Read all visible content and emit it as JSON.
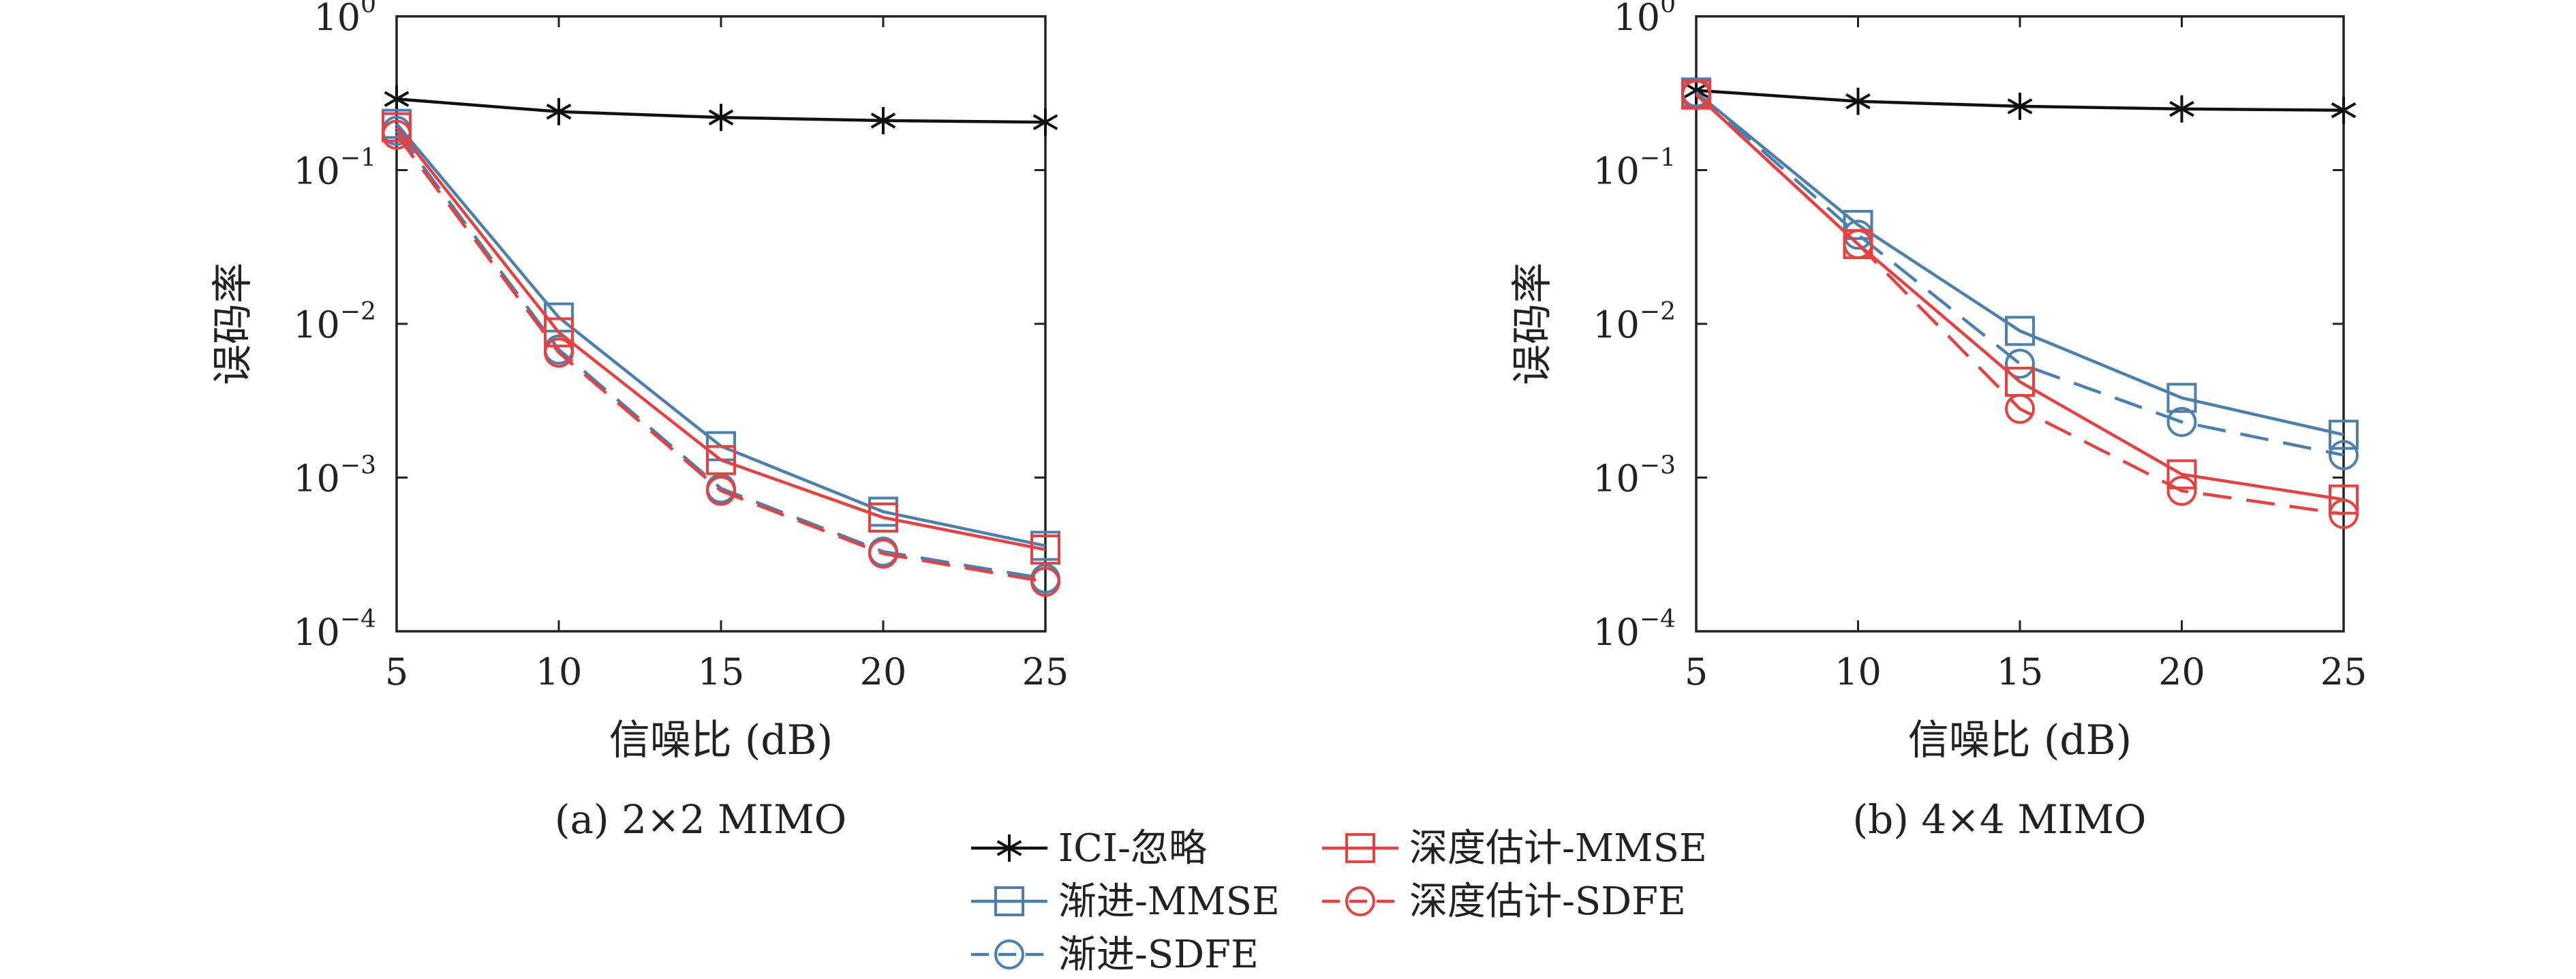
{
  "colors": {
    "ici": "#111111",
    "asym": "#4a7fb0",
    "deep": "#e8403f",
    "axis": "#222222"
  },
  "legend": {
    "items": [
      {
        "label": "ICI-忽略",
        "series": "ici",
        "marker": "asterisk",
        "dash": false
      },
      {
        "label": "渐进-MMSE",
        "series": "asym_mmse",
        "marker": "square",
        "dash": false
      },
      {
        "label": "渐进-SDFE",
        "series": "asym_sdfe",
        "marker": "circle",
        "dash": true
      },
      {
        "label": "深度估计-MMSE",
        "series": "deep_mmse",
        "marker": "square",
        "dash": false
      },
      {
        "label": "深度估计-SDFE",
        "series": "deep_sdfe",
        "marker": "circle",
        "dash": true
      }
    ]
  },
  "chart_data": [
    {
      "type": "line",
      "caption": "(a) 2×2 MIMO",
      "xlabel": "信噪比 (dB)",
      "ylabel": "误码率",
      "yscale": "log",
      "xlim": [
        5,
        25
      ],
      "ylim": [
        0.0001,
        1
      ],
      "x": [
        5,
        10,
        15,
        20,
        25
      ],
      "xticks": [
        "5",
        "10",
        "15",
        "20",
        "25"
      ],
      "yticks": [
        {
          "value": 1,
          "base": "10",
          "exp": "0"
        },
        {
          "value": 0.1,
          "base": "10",
          "exp": "−1"
        },
        {
          "value": 0.01,
          "base": "10",
          "exp": "−2"
        },
        {
          "value": 0.001,
          "base": "10",
          "exp": "−3"
        },
        {
          "value": 0.0001,
          "base": "10",
          "exp": "−4"
        }
      ],
      "series": [
        {
          "name": "ICI-忽略",
          "key": "ici",
          "values": [
            0.29,
            0.24,
            0.22,
            0.21,
            0.205
          ]
        },
        {
          "name": "渐进-MMSE",
          "key": "asym_mmse",
          "values": [
            0.2,
            0.011,
            0.0016,
            0.0006,
            0.00036
          ]
        },
        {
          "name": "渐进-SDFE",
          "key": "asym_sdfe",
          "values": [
            0.18,
            0.0068,
            0.00085,
            0.00033,
            0.00022
          ]
        },
        {
          "name": "深度估计-MMSE",
          "key": "deep_mmse",
          "values": [
            0.19,
            0.0088,
            0.0013,
            0.00055,
            0.00034
          ]
        },
        {
          "name": "深度估计-SDFE",
          "key": "deep_sdfe",
          "values": [
            0.17,
            0.0065,
            0.00082,
            0.00032,
            0.00021
          ]
        }
      ]
    },
    {
      "type": "line",
      "caption": "(b) 4×4 MIMO",
      "xlabel": "信噪比 (dB)",
      "ylabel": "误码率",
      "yscale": "log",
      "xlim": [
        5,
        25
      ],
      "ylim": [
        0.0001,
        1
      ],
      "x": [
        5,
        10,
        15,
        20,
        25
      ],
      "xticks": [
        "5",
        "10",
        "15",
        "20",
        "25"
      ],
      "yticks": [
        {
          "value": 1,
          "base": "10",
          "exp": "0"
        },
        {
          "value": 0.1,
          "base": "10",
          "exp": "−1"
        },
        {
          "value": 0.01,
          "base": "10",
          "exp": "−2"
        },
        {
          "value": 0.001,
          "base": "10",
          "exp": "−3"
        },
        {
          "value": 0.0001,
          "base": "10",
          "exp": "−4"
        }
      ],
      "series": [
        {
          "name": "ICI-忽略",
          "key": "ici",
          "values": [
            0.33,
            0.28,
            0.26,
            0.25,
            0.245
          ]
        },
        {
          "name": "渐进-MMSE",
          "key": "asym_mmse",
          "values": [
            0.32,
            0.044,
            0.009,
            0.0033,
            0.0019
          ]
        },
        {
          "name": "渐进-SDFE",
          "key": "asym_sdfe",
          "values": [
            0.32,
            0.038,
            0.0055,
            0.0023,
            0.0014
          ]
        },
        {
          "name": "深度估计-MMSE",
          "key": "deep_mmse",
          "values": [
            0.31,
            0.033,
            0.0042,
            0.00105,
            0.00072
          ]
        },
        {
          "name": "深度估计-SDFE",
          "key": "deep_sdfe",
          "values": [
            0.31,
            0.033,
            0.0028,
            0.00082,
            0.00058
          ]
        }
      ]
    }
  ]
}
